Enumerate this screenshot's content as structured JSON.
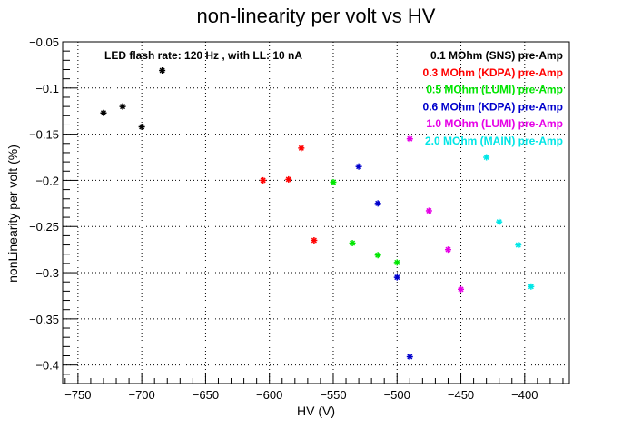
{
  "chart_data": {
    "type": "scatter",
    "title": "non-linearity per volt vs HV",
    "xlabel": "HV (V)",
    "ylabel": "nonLinearity per volt (%)",
    "xlim": [
      -762,
      -365
    ],
    "ylim": [
      -0.42,
      -0.05
    ],
    "xticks": [
      -750,
      -700,
      -650,
      -600,
      -550,
      -500,
      -450,
      -400
    ],
    "yticks": [
      -0.05,
      -0.1,
      -0.15,
      -0.2,
      -0.25,
      -0.3,
      -0.35,
      -0.4
    ],
    "grid": true,
    "legend_position": "top-right",
    "annotation": "LED flash rate: 120 Hz , with LL: 10 nA",
    "series": [
      {
        "name": "0.1 MOhm (SNS) pre-Amp",
        "color": "#000000",
        "x": [
          -730,
          -715,
          -700,
          -684
        ],
        "y": [
          -0.127,
          -0.12,
          -0.142,
          -0.081
        ]
      },
      {
        "name": "0.3 MOhm (KDPA) pre-Amp",
        "color": "#ff0000",
        "x": [
          -605,
          -585,
          -575,
          -565
        ],
        "y": [
          -0.2,
          -0.199,
          -0.165,
          -0.265
        ]
      },
      {
        "name": "0.5 MOhm (LUMI) pre-Amp",
        "color": "#00e600",
        "x": [
          -550,
          -535,
          -515,
          -500
        ],
        "y": [
          -0.202,
          -0.268,
          -0.281,
          -0.289
        ]
      },
      {
        "name": "0.6 MOhm (KDPA) pre-Amp",
        "color": "#0000cc",
        "x": [
          -530,
          -515,
          -500,
          -490
        ],
        "y": [
          -0.185,
          -0.225,
          -0.305,
          -0.391
        ]
      },
      {
        "name": "1.0 MOhm (LUMI) pre-Amp",
        "color": "#e600e6",
        "x": [
          -490,
          -475,
          -460,
          -450
        ],
        "y": [
          -0.155,
          -0.233,
          -0.275,
          -0.318
        ]
      },
      {
        "name": "2.0 MOhm (MAIN) pre-Amp",
        "color": "#00e6e6",
        "x": [
          -430,
          -420,
          -405,
          -395
        ],
        "y": [
          -0.175,
          -0.245,
          -0.27,
          -0.315
        ]
      }
    ]
  }
}
